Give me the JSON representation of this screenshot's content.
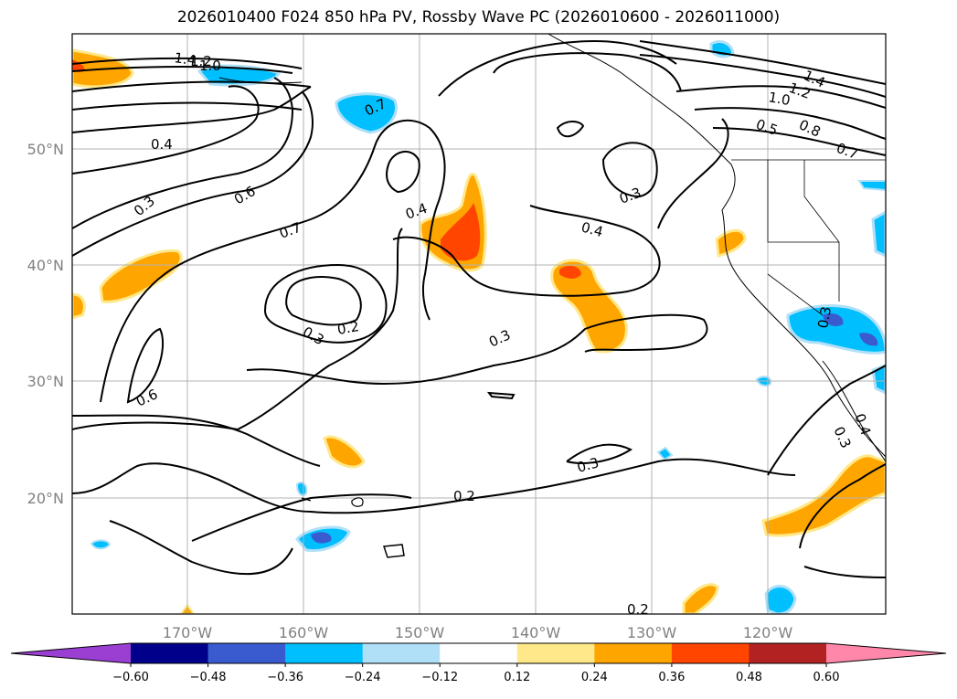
{
  "title": "2026010400 F024 850 hPa PV, Rossby Wave PC (2026010600 - 2026011000)",
  "map": {
    "lat_ticks": [
      "50°N",
      "40°N",
      "30°N",
      "20°N"
    ],
    "lon_ticks": [
      "170°W",
      "160°W",
      "150°W",
      "140°W",
      "130°W",
      "120°W"
    ],
    "grid": true,
    "contour_labels": [
      "1.4",
      "1.2",
      "1.0",
      "0.7",
      "0.4",
      "0.3",
      "0.6",
      "0.7",
      "0.4",
      "0.4",
      "0.3",
      "0.2",
      "0.3",
      "0.6",
      "0.3",
      "0.3",
      "0.2",
      "0.2",
      "1.4",
      "1.2",
      "1.0",
      "0.8",
      "0.5",
      "0.7",
      "0.3",
      "0.4",
      "0.3"
    ]
  },
  "colorbar": {
    "tick_labels": [
      "−0.60",
      "−0.48",
      "−0.36",
      "−0.24",
      "−0.12",
      "0.12",
      "0.24",
      "0.36",
      "0.48",
      "0.60"
    ],
    "colors": [
      "#9b3fd3",
      "#00008b",
      "#3a5bd0",
      "#00bfff",
      "#b0e0f8",
      "#ffffff",
      "#ffe88a",
      "#ffa500",
      "#ff4500",
      "#b22222",
      "#ff88aa"
    ],
    "extend": "both"
  }
}
